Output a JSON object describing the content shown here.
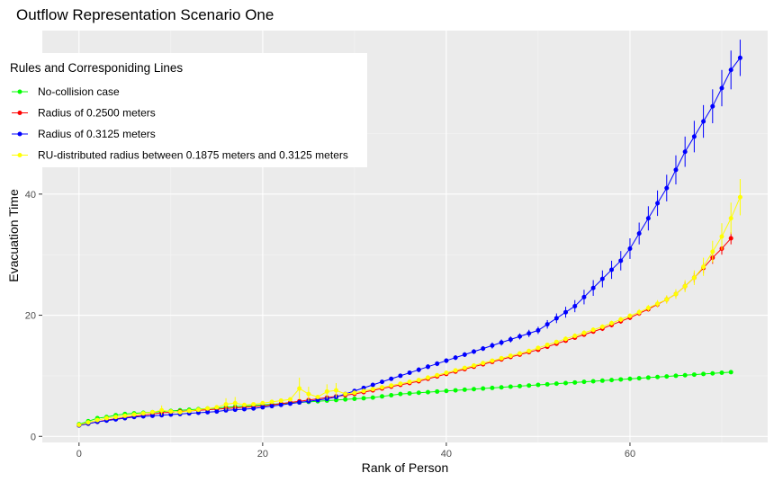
{
  "chart_data": {
    "type": "line",
    "title": "Outflow Representation Scenario One",
    "xlabel": "Rank of Person",
    "ylabel": "Evacuation Time",
    "xlim": [
      -4,
      75
    ],
    "ylim": [
      -1,
      67
    ],
    "xticks": [
      0,
      20,
      40,
      60
    ],
    "yticks": [
      0,
      20,
      40
    ],
    "grid": true,
    "legend": {
      "title": "Rules and Corresponiding Lines",
      "position": "top-left"
    },
    "series": [
      {
        "name": "No-collision case",
        "color": "#00ff00",
        "y": [
          2.0,
          2.5,
          3.0,
          3.2,
          3.5,
          3.7,
          3.8,
          3.9,
          4.0,
          4.1,
          4.2,
          4.3,
          4.4,
          4.5,
          4.6,
          4.7,
          4.8,
          4.9,
          5.0,
          5.1,
          5.2,
          5.3,
          5.4,
          5.5,
          5.6,
          5.7,
          5.8,
          5.9,
          6.0,
          6.1,
          6.2,
          6.3,
          6.4,
          6.6,
          6.8,
          7.0,
          7.1,
          7.2,
          7.3,
          7.4,
          7.5,
          7.6,
          7.7,
          7.8,
          7.9,
          8.0,
          8.1,
          8.2,
          8.3,
          8.4,
          8.5,
          8.6,
          8.7,
          8.8,
          8.9,
          9.0,
          9.1,
          9.2,
          9.3,
          9.4,
          9.5,
          9.6,
          9.7,
          9.8,
          9.9,
          10.0,
          10.1,
          10.2,
          10.3,
          10.4,
          10.5,
          10.6
        ]
      },
      {
        "name": "Radius of 0.2500 meters",
        "color": "#ff0000",
        "y": [
          1.8,
          2.1,
          2.4,
          2.7,
          2.9,
          3.1,
          3.3,
          3.5,
          3.7,
          3.9,
          4.0,
          4.1,
          4.2,
          4.3,
          4.4,
          4.5,
          4.6,
          4.7,
          4.8,
          4.9,
          5.0,
          5.2,
          5.4,
          5.6,
          5.8,
          6.0,
          6.2,
          6.4,
          6.6,
          6.8,
          7.0,
          7.3,
          7.6,
          7.9,
          8.2,
          8.5,
          8.8,
          9.1,
          9.5,
          9.9,
          10.3,
          10.7,
          11.1,
          11.5,
          11.9,
          12.3,
          12.7,
          13.1,
          13.5,
          13.9,
          14.3,
          14.8,
          15.3,
          15.8,
          16.3,
          16.8,
          17.3,
          17.8,
          18.4,
          19.0,
          19.6,
          20.3,
          21.0,
          21.8,
          22.6,
          23.5,
          24.8,
          26.2,
          27.8,
          29.5,
          31.0,
          32.7
        ],
        "err": [
          0.2,
          0.2,
          0.2,
          0.2,
          0.2,
          0.2,
          0.2,
          0.2,
          0.2,
          0.2,
          0.2,
          0.2,
          0.2,
          0.2,
          0.2,
          0.2,
          0.2,
          0.2,
          0.2,
          0.2,
          0.2,
          0.2,
          0.2,
          0.2,
          0.2,
          0.2,
          0.2,
          0.2,
          0.2,
          0.2,
          0.2,
          0.2,
          0.2,
          0.2,
          0.2,
          0.2,
          0.2,
          0.2,
          0.2,
          0.2,
          0.2,
          0.2,
          0.2,
          0.2,
          0.2,
          0.2,
          0.2,
          0.3,
          0.3,
          0.3,
          0.3,
          0.3,
          0.3,
          0.3,
          0.3,
          0.3,
          0.3,
          0.4,
          0.4,
          0.4,
          0.4,
          0.4,
          0.4,
          0.5,
          0.5,
          0.6,
          0.7,
          0.8,
          0.9,
          1.0,
          1.0,
          1.0
        ]
      },
      {
        "name": "Radius of 0.3125 meters",
        "color": "#0000ff",
        "y": [
          1.8,
          2.1,
          2.4,
          2.6,
          2.8,
          3.0,
          3.2,
          3.3,
          3.4,
          3.5,
          3.6,
          3.7,
          3.8,
          3.9,
          4.0,
          4.1,
          4.3,
          4.4,
          4.5,
          4.6,
          4.8,
          5.0,
          5.2,
          5.4,
          5.6,
          5.8,
          6.0,
          6.2,
          6.5,
          7.0,
          7.5,
          8.0,
          8.5,
          9.0,
          9.5,
          10.0,
          10.5,
          11.0,
          11.5,
          12.0,
          12.5,
          13.0,
          13.5,
          14.0,
          14.5,
          15.0,
          15.5,
          16.0,
          16.5,
          17.0,
          17.5,
          18.5,
          19.5,
          20.5,
          21.5,
          23.0,
          24.5,
          26.0,
          27.5,
          29.0,
          31.0,
          33.5,
          36.0,
          38.5,
          41.0,
          44.0,
          47.0,
          49.5,
          52.0,
          54.5,
          57.5,
          60.5,
          62.5
        ],
        "err": [
          0.2,
          0.2,
          0.2,
          0.2,
          0.2,
          0.2,
          0.2,
          0.2,
          0.2,
          0.2,
          0.2,
          0.2,
          0.2,
          0.2,
          0.2,
          0.2,
          0.2,
          0.2,
          0.2,
          0.2,
          0.2,
          0.2,
          0.2,
          0.2,
          0.2,
          0.2,
          0.2,
          0.2,
          0.2,
          0.3,
          0.3,
          0.3,
          0.3,
          0.3,
          0.3,
          0.3,
          0.3,
          0.4,
          0.4,
          0.4,
          0.4,
          0.4,
          0.4,
          0.4,
          0.4,
          0.5,
          0.5,
          0.5,
          0.5,
          0.6,
          0.6,
          0.7,
          0.8,
          0.9,
          1.0,
          1.2,
          1.3,
          1.4,
          1.5,
          1.6,
          1.7,
          1.8,
          2.0,
          2.1,
          2.2,
          2.4,
          2.5,
          2.6,
          2.7,
          2.8,
          3.0,
          3.2,
          3.0
        ]
      },
      {
        "name": "RU-distributed radius between 0.1875 meters and 0.3125 meters",
        "color": "#ffff00",
        "y": [
          1.9,
          2.3,
          2.7,
          3.0,
          3.2,
          3.4,
          3.6,
          3.8,
          4.0,
          4.3,
          4.1,
          4.0,
          4.2,
          4.4,
          4.6,
          4.8,
          5.3,
          5.5,
          5.2,
          5.3,
          5.5,
          5.7,
          5.9,
          6.1,
          7.9,
          7.0,
          6.5,
          7.4,
          7.6,
          7.0,
          7.2,
          7.5,
          7.8,
          8.1,
          8.4,
          8.7,
          9.0,
          9.3,
          9.7,
          10.1,
          10.5,
          10.9,
          11.3,
          11.7,
          12.1,
          12.5,
          12.9,
          13.3,
          13.7,
          14.1,
          14.6,
          15.1,
          15.6,
          16.1,
          16.6,
          17.1,
          17.6,
          18.1,
          18.7,
          19.3,
          19.9,
          20.5,
          21.2,
          21.9,
          22.6,
          23.5,
          24.8,
          26.2,
          28.0,
          30.5,
          33.0,
          36.0,
          39.5
        ],
        "err": [
          0.2,
          0.2,
          0.2,
          0.2,
          0.2,
          0.2,
          0.2,
          0.2,
          0.2,
          0.8,
          0.3,
          0.3,
          0.3,
          0.3,
          0.3,
          0.3,
          1.0,
          1.0,
          0.3,
          0.3,
          0.3,
          0.3,
          0.3,
          0.3,
          1.8,
          1.2,
          0.3,
          1.2,
          1.2,
          0.3,
          0.3,
          0.3,
          0.3,
          0.3,
          0.3,
          0.3,
          0.3,
          0.3,
          0.3,
          0.3,
          0.3,
          0.3,
          0.3,
          0.3,
          0.3,
          0.3,
          0.3,
          0.3,
          0.3,
          0.3,
          0.3,
          0.3,
          0.3,
          0.4,
          0.4,
          0.4,
          0.4,
          0.4,
          0.4,
          0.4,
          0.4,
          0.5,
          0.5,
          0.6,
          0.7,
          0.8,
          1.0,
          1.2,
          1.5,
          1.8,
          2.2,
          2.6,
          3.0
        ]
      }
    ]
  }
}
